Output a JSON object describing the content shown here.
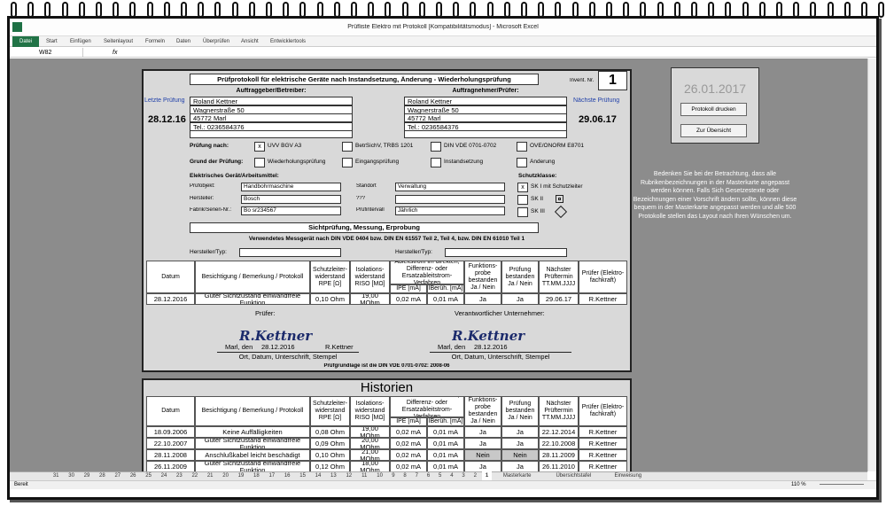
{
  "window": {
    "title": "Prüfliste Elektro mit Protokoll [Kompatibilitätsmodus] - Microsoft Excel",
    "tabs": [
      "Datei",
      "Start",
      "Einfügen",
      "Seitenlayout",
      "Formeln",
      "Daten",
      "Überprüfen",
      "Ansicht",
      "Entwicklertools"
    ],
    "name_box": "W82",
    "fx": "fx"
  },
  "form": {
    "title": "Prüfprotokoll für elektrische Geräte nach Instandsetzung, Änderung - Wiederholungsprüfung",
    "invent_label": "Invent. Nr.",
    "invent_no": "1",
    "last_label": "Letzte Prüfung",
    "last_date": "28.12.16",
    "next_label": "Nächste Prüfung",
    "next_date": "29.06.17",
    "client": {
      "heading": "Auftraggeber/Betreiber:",
      "lines": [
        "Roland Kettner",
        "Wagnerstraße 50",
        "45772 Marl",
        "Tel.: 0236584376"
      ]
    },
    "contractor": {
      "heading": "Auftragnehmer/Prüfer:",
      "lines": [
        "Roland Kettner",
        "Wagnerstraße 50",
        "45772 Marl",
        "Tel.: 0236584376"
      ]
    },
    "pruefung_label": "Prüfung nach:",
    "pruefung_mark": "x",
    "pruefung_options": [
      "UVV BGV A3",
      "BetrSichV, TRBS 1201",
      "DIN VDE 0701-0702",
      "ÖVE/ÖNORM E8701"
    ],
    "grund_label": "Grund der Prüfung:",
    "grund_options": [
      "Wiederholungsprüfung",
      "Eingangsprüfung",
      "Instandsetzung",
      "Änderung"
    ],
    "device_heading": "Elektrisches Gerät/Arbeitsmittel:",
    "fields_left": [
      {
        "label": "Prüfobjekt:",
        "value": "Handbohrmaschine"
      },
      {
        "label": "Hersteller:",
        "value": "Bosch"
      },
      {
        "label": "Fabrik/Serien-Nr.:",
        "value": "Bo sr234567"
      }
    ],
    "fields_right": [
      {
        "label": "Standort",
        "value": "Verwaltung"
      },
      {
        "label": "???"
      },
      {
        "label": "Prüfintervall",
        "value": "Jährlich"
      }
    ],
    "schutz_heading": "Schutzklasse:",
    "schutz_mark": "x",
    "schutz": [
      "SK I mit Schutzleiter",
      "SK II",
      "SK III"
    ],
    "section2": "Sichtprüfung, Messung, Erprobung",
    "messgeraet": "Verwendetes Messgerät nach DIN VDE 0404 bzw. DIN EN 61557 Teil 2, Teil 4, bzw. DIN EN 61010 Teil 1",
    "hersteller_typ": [
      "Hersteller/Typ:",
      "Hersteller/Typ:"
    ],
    "headers": [
      "Datum",
      "Besichtigung / Bemerkung / Protokoll",
      "Schutzleiter-widerstand RPE [Ω]",
      "Isolations-widerstand RISO [MΩ]",
      "Ableitstrom im direkten, Differenz- oder Ersatzableitstrom-Verfahren",
      "Funktions-probe bestanden Ja / Nein",
      "Prüfung bestanden Ja / Nein",
      "Nächster Prüftermin TT.MM.JJJJ",
      "Prüfer (Elektro-fachkraft)"
    ],
    "sub_headers": [
      "IPE [mA]",
      "IBerüh. [mA]"
    ],
    "row": [
      "28.12.2016",
      "Guter Sichtzustand einwandfreie Funktion",
      "0,10 Ohm",
      "19,00 MOhm",
      "0,02 mA",
      "0,01 mA",
      "Ja",
      "Ja",
      "29.06.17",
      "R.Kettner"
    ],
    "pruefer_label": "Prüfer:",
    "unternehmer_label": "Verantwortlicher Unternehmer:",
    "signatures": [
      {
        "sig": "R.Kettner",
        "place": "Marl, den",
        "date": "28.12.2016",
        "name": "R.Kettner",
        "caption": "Ort, Datum, Unterschrift, Stempel"
      },
      {
        "sig": "R.Kettner",
        "place": "Marl, den",
        "date": "28.12.2016",
        "caption": "Ort, Datum, Unterschrift, Stempel"
      }
    ],
    "footer": "Prüfgrundlage ist die DIN VDE 0701-0702: 2008-06"
  },
  "history": {
    "title": "Historien",
    "headers": [
      "Datum",
      "Besichtigung / Bemerkung / Protokoll",
      "Schutzleiter-widerstand RPE [Ω]",
      "Isolations-widerstand RISO [MΩ]",
      "Ableitstrom im direkten, Differenz- oder Ersatzableitstrom-Verfahren",
      "Funktions-probe bestanden Ja / Nein",
      "Prüfung bestanden Ja / Nein",
      "Nächster Prüftermin TT.MM.JJJJ",
      "Prüfer (Elektro-fachkraft)"
    ],
    "sub_headers": [
      "IPE [mA]",
      "IBerüh. [mA]"
    ],
    "rows": [
      [
        "18.09.2006",
        "Keine Auffälligkeiten",
        "0,08 Ohm",
        "19,00 MOhm",
        "0,02 mA",
        "0,01 mA",
        "Ja",
        "Ja",
        "22.12.2014",
        "R.Kettner"
      ],
      [
        "22.10.2007",
        "Guter Sichtzustand einwandfreie Funktion",
        "0,09 Ohm",
        "20,00 MOhm",
        "0,02 mA",
        "0,01 mA",
        "Ja",
        "Ja",
        "22.10.2008",
        "R.Kettner"
      ],
      [
        "28.11.2008",
        "Anschlußkabel leicht beschädigt",
        "0,10 Ohm",
        "21,00 MOhm",
        "0,02 mA",
        "0,01 mA",
        "Nein",
        "Nein",
        "28.11.2009",
        "R.Kettner"
      ],
      [
        "26.11.2009",
        "Guter Sichtzustand einwandfreie Funktion",
        "0,12 Ohm",
        "18,00 MOhm",
        "0,02 mA",
        "0,01 mA",
        "Ja",
        "Ja",
        "26.11.2010",
        "R.Kettner"
      ]
    ]
  },
  "panel": {
    "date": "26.01.2017",
    "buttons": [
      "Protokoll drucken",
      "Zur Übersicht"
    ],
    "note": "Bedenken Sie bei der Betrachtung, dass alle Rubrikenbezeichnungen in der Masterkarte angepasst werden können. Falls Sich Gesetzestexte oder Bezeichnungen einer Vorschrift ändern sollte, können diese bequem in der Masterkarte angepasst werden und alle 500 Protokolle stellen das Layout nach Ihren Wünschen um."
  },
  "sheet_tabs": [
    "31",
    "30",
    "29",
    "28",
    "27",
    "26",
    "25",
    "24",
    "23",
    "22",
    "21",
    "20",
    "19",
    "18",
    "17",
    "16",
    "15",
    "14",
    "13",
    "12",
    "11",
    "10",
    "9",
    "8",
    "7",
    "6",
    "5",
    "4",
    "3",
    "2",
    "1",
    "Masterkarte",
    "Übersichtstafel",
    "Einweisung"
  ],
  "status": {
    "ready": "Bereit",
    "zoom": "110 %"
  }
}
